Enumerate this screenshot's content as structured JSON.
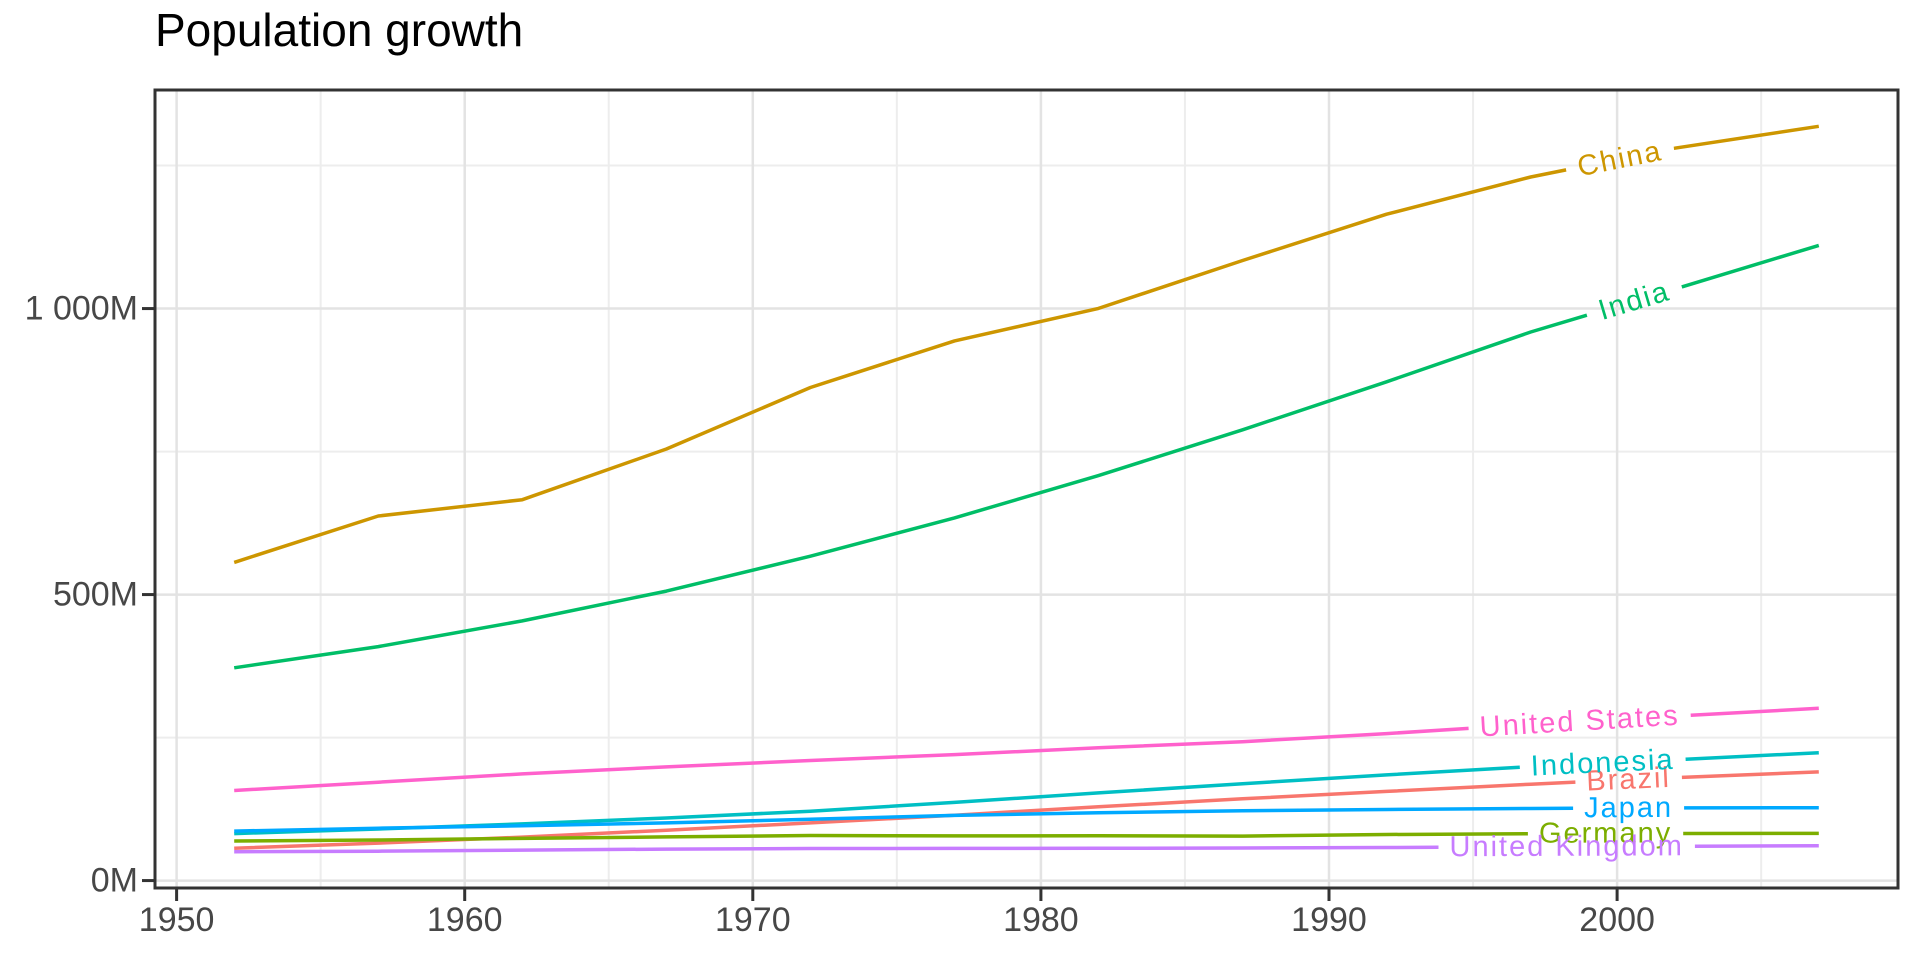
{
  "title": "Population growth",
  "styles": {
    "background": "#ffffff",
    "panel_border": "#333333",
    "grid_major": "#e3e3e3",
    "grid_minor": "#ededed",
    "axis_text": "#474747",
    "tick_mark": "#333333",
    "title_color": "#000000"
  },
  "chart_data": {
    "type": "line",
    "title": "Population growth",
    "xlabel": "",
    "ylabel": "",
    "grid": true,
    "legend": "inline-colored-labels-on-lines",
    "xlim": [
      1949.25,
      2009.75
    ],
    "ylim": [
      -12.98,
      1382.09
    ],
    "x": [
      1952,
      1957,
      1962,
      1967,
      1972,
      1977,
      1982,
      1987,
      1992,
      1997,
      2002,
      2007
    ],
    "x_ticks": [
      {
        "value": 1950,
        "label": "1950"
      },
      {
        "value": 1960,
        "label": "1960"
      },
      {
        "value": 1970,
        "label": "1970"
      },
      {
        "value": 1980,
        "label": "1980"
      },
      {
        "value": 1990,
        "label": "1990"
      },
      {
        "value": 2000,
        "label": "2000"
      }
    ],
    "y_ticks": [
      {
        "value": 0,
        "label": "0M"
      },
      {
        "value": 500,
        "label": "500M"
      },
      {
        "value": 1000,
        "label": "1 000M"
      }
    ],
    "x_minor": [
      1955,
      1965,
      1975,
      1985,
      1995,
      2005
    ],
    "y_minor": [
      250,
      750,
      1250
    ],
    "y_unit": "millions of people",
    "series": [
      {
        "name": "Brazil",
        "color": "#F8766D",
        "label_year": 2000.4,
        "values": [
          56.6,
          65.55,
          76.04,
          88.05,
          100.84,
          114.31,
          128.96,
          142.94,
          155.98,
          168.55,
          179.91,
          190.01
        ]
      },
      {
        "name": "China",
        "color": "#CD9600",
        "label_year": 2000.1,
        "values": [
          556.26,
          637.41,
          665.77,
          754.55,
          862.03,
          943.46,
          1000.28,
          1084.04,
          1164.97,
          1230.08,
          1280.4,
          1318.68
        ]
      },
      {
        "name": "Germany",
        "color": "#7CAE00",
        "label_year": 1999.6,
        "values": [
          69.15,
          71.02,
          73.74,
          76.37,
          78.72,
          78.16,
          78.34,
          77.72,
          80.6,
          82.01,
          82.35,
          82.4
        ]
      },
      {
        "name": "India",
        "color": "#00BE67",
        "label_year": 2000.6,
        "values": [
          372.0,
          409.0,
          454.0,
          506.0,
          567.0,
          634.0,
          708.0,
          788.0,
          872.0,
          959.0,
          1034.17,
          1110.4
        ]
      },
      {
        "name": "Indonesia",
        "color": "#00BFC4",
        "label_year": 1999.5,
        "values": [
          82.05,
          90.12,
          99.03,
          109.34,
          121.28,
          136.73,
          153.34,
          169.28,
          184.82,
          199.28,
          211.06,
          223.55
        ]
      },
      {
        "name": "Japan",
        "color": "#00A9FF",
        "label_year": 2000.4,
        "values": [
          86.46,
          91.56,
          95.83,
          100.83,
          107.19,
          113.87,
          118.45,
          122.09,
          124.33,
          125.96,
          127.07,
          127.47
        ]
      },
      {
        "name": "United Kingdom",
        "color": "#C77CFF",
        "label_year": 1998.25,
        "values": [
          50.43,
          51.43,
          53.29,
          54.96,
          56.08,
          56.18,
          56.34,
          56.98,
          57.87,
          58.81,
          59.91,
          60.78
        ]
      },
      {
        "name": "United States",
        "color": "#FF61CC",
        "label_year": 1998.7,
        "values": [
          157.55,
          171.98,
          186.54,
          198.71,
          209.9,
          220.24,
          232.19,
          242.8,
          256.89,
          272.91,
          287.68,
          301.14
        ]
      }
    ]
  }
}
